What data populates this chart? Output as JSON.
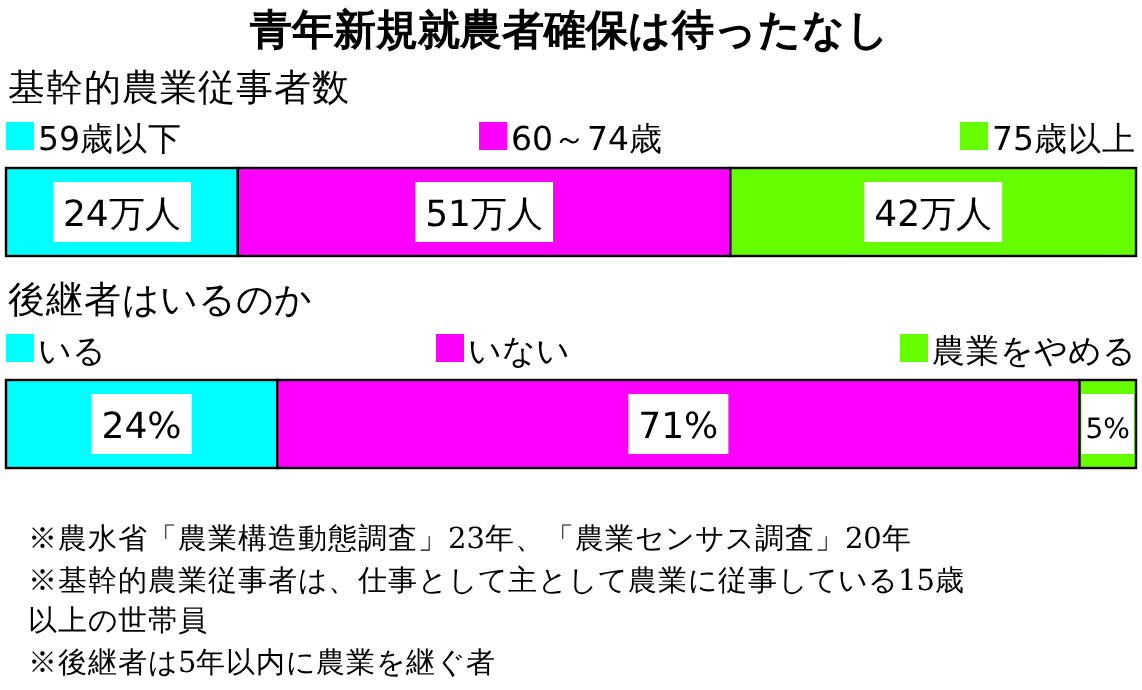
{
  "chart_data": [
    {
      "type": "bar",
      "title": "青年新規就農者確保は待ったなし",
      "subtitle": "基幹的農業従事者数",
      "orientation": "horizontal",
      "stacked": true,
      "legend": "top",
      "categories": [
        null
      ],
      "series": [
        {
          "name": "59歳以下",
          "color": "#00ffff",
          "values": [
            24
          ],
          "value_labels": [
            "24万人"
          ]
        },
        {
          "name": "60～74歳",
          "color": "#ff00ff",
          "values": [
            51
          ],
          "value_labels": [
            "51万人"
          ]
        },
        {
          "name": "75歳以上",
          "color": "#66ff00",
          "values": [
            42
          ],
          "value_labels": [
            "42万人"
          ]
        }
      ]
    },
    {
      "type": "bar",
      "title": "後継者はいるのか",
      "orientation": "horizontal",
      "stacked": true,
      "legend": "top",
      "categories": [
        null
      ],
      "series": [
        {
          "name": "いる",
          "color": "#00ffff",
          "values": [
            24
          ],
          "value_labels": [
            "24%"
          ]
        },
        {
          "name": "いない",
          "color": "#ff00ff",
          "values": [
            71
          ],
          "value_labels": [
            "71%"
          ]
        },
        {
          "name": "農業をやめる",
          "color": "#66ff00",
          "values": [
            5
          ],
          "value_labels": [
            "5%"
          ]
        }
      ],
      "annotations": [
        "※農水省「農業構造動態調査」23年、「農業センサス調査」20年",
        "※基幹的農業従事者は、仕事として主として農業に従事している15歳以上の世帯員",
        "※後継者は5年以内に農業を継ぐ者"
      ]
    }
  ]
}
